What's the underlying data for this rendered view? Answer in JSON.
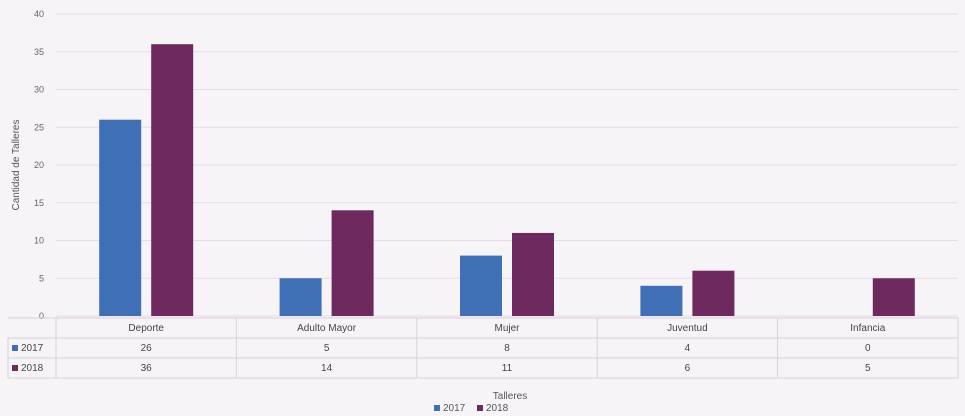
{
  "chart_data": {
    "type": "bar",
    "title": "",
    "xlabel": "Talleres",
    "ylabel": "Cantidad de Talleres",
    "categories": [
      "Deporte",
      "Adulto Mayor",
      "Mujer",
      "Juventud",
      "Infancia"
    ],
    "series": [
      {
        "name": "2017",
        "values": [
          26,
          5,
          8,
          4,
          0
        ],
        "color": "#3f6fb5"
      },
      {
        "name": "2018",
        "values": [
          36,
          14,
          11,
          6,
          5
        ],
        "color": "#6e2a5e"
      }
    ],
    "ylim": [
      0,
      40
    ],
    "yticks": [
      0,
      5,
      10,
      15,
      20,
      25,
      30,
      35,
      40
    ],
    "grid": true,
    "legend": "bottom",
    "data_table": true
  },
  "colors": {
    "background": "#f7f4f7",
    "grid": "#e7d9e7",
    "table_lines": "#d8d0d8"
  }
}
